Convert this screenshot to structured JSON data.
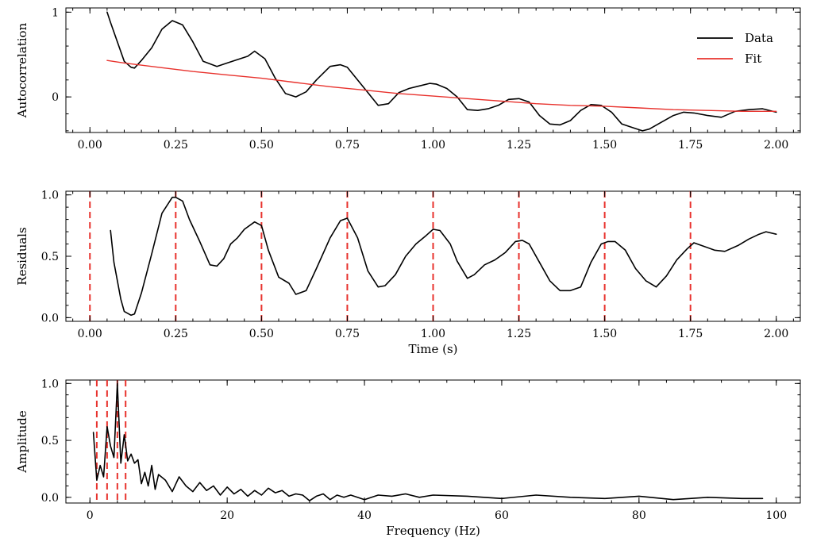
{
  "chart_data": [
    {
      "type": "line",
      "ylabel": "Autocorrelation",
      "xlabel": "",
      "xlim": [
        -0.07,
        2.07
      ],
      "ylim": [
        -0.42,
        1.05
      ],
      "xticks": [
        0,
        0.25,
        0.5,
        0.75,
        1.0,
        1.25,
        1.5,
        1.75,
        2.0
      ],
      "xtick_labels": [
        "0.00",
        "0.25",
        "0.50",
        "0.75",
        "1.00",
        "1.25",
        "1.50",
        "1.75",
        "2.00"
      ],
      "yticks": [
        0,
        1
      ],
      "ytick_labels": [
        "0",
        "1"
      ],
      "legend": {
        "placement": "top-right",
        "entries": [
          {
            "label": "Data",
            "color": "#000000"
          },
          {
            "label": "Fit",
            "color": "#e8322d"
          }
        ]
      },
      "series": [
        {
          "name": "Data",
          "color": "#000000",
          "x": [
            0.05,
            0.06,
            0.08,
            0.1,
            0.12,
            0.13,
            0.15,
            0.18,
            0.21,
            0.24,
            0.27,
            0.3,
            0.33,
            0.37,
            0.4,
            0.43,
            0.46,
            0.48,
            0.51,
            0.54,
            0.57,
            0.6,
            0.63,
            0.66,
            0.7,
            0.73,
            0.75,
            0.78,
            0.81,
            0.84,
            0.87,
            0.9,
            0.93,
            0.96,
            0.99,
            1.01,
            1.04,
            1.07,
            1.1,
            1.13,
            1.16,
            1.19,
            1.22,
            1.25,
            1.28,
            1.31,
            1.34,
            1.37,
            1.4,
            1.43,
            1.46,
            1.49,
            1.52,
            1.55,
            1.58,
            1.61,
            1.63,
            1.66,
            1.7,
            1.73,
            1.76,
            1.8,
            1.84,
            1.88,
            1.92,
            1.96,
            2.0
          ],
          "y": [
            1.0,
            0.88,
            0.65,
            0.42,
            0.35,
            0.34,
            0.43,
            0.58,
            0.8,
            0.9,
            0.85,
            0.65,
            0.42,
            0.36,
            0.4,
            0.44,
            0.48,
            0.54,
            0.45,
            0.22,
            0.04,
            0.0,
            0.06,
            0.2,
            0.36,
            0.38,
            0.35,
            0.2,
            0.05,
            -0.1,
            -0.08,
            0.05,
            0.1,
            0.13,
            0.16,
            0.15,
            0.1,
            0.0,
            -0.15,
            -0.16,
            -0.14,
            -0.1,
            -0.03,
            -0.02,
            -0.06,
            -0.22,
            -0.32,
            -0.33,
            -0.28,
            -0.16,
            -0.09,
            -0.1,
            -0.18,
            -0.32,
            -0.36,
            -0.4,
            -0.38,
            -0.31,
            -0.22,
            -0.18,
            -0.19,
            -0.22,
            -0.24,
            -0.17,
            -0.15,
            -0.14,
            -0.18
          ]
        },
        {
          "name": "Fit",
          "color": "#e8322d",
          "x": [
            0.05,
            0.1,
            0.2,
            0.3,
            0.4,
            0.5,
            0.6,
            0.7,
            0.8,
            0.9,
            1.0,
            1.1,
            1.2,
            1.3,
            1.4,
            1.5,
            1.6,
            1.7,
            1.8,
            1.9,
            2.0
          ],
          "y": [
            0.43,
            0.4,
            0.35,
            0.3,
            0.26,
            0.22,
            0.17,
            0.12,
            0.08,
            0.04,
            0.01,
            -0.02,
            -0.05,
            -0.08,
            -0.1,
            -0.11,
            -0.13,
            -0.15,
            -0.16,
            -0.17,
            -0.17
          ]
        }
      ]
    },
    {
      "type": "line",
      "ylabel": "Residuals",
      "xlabel": "Time (s)",
      "xlim": [
        -0.07,
        2.07
      ],
      "ylim": [
        -0.03,
        1.03
      ],
      "xticks": [
        0,
        0.25,
        0.5,
        0.75,
        1.0,
        1.25,
        1.5,
        1.75,
        2.0
      ],
      "xtick_labels": [
        "0.00",
        "0.25",
        "0.50",
        "0.75",
        "1.00",
        "1.25",
        "1.50",
        "1.75",
        "2.00"
      ],
      "yticks": [
        0,
        0.5,
        1.0
      ],
      "ytick_labels": [
        "0.0",
        "0.5",
        "1.0"
      ],
      "vlines": {
        "color": "#e8322d",
        "x": [
          0.0,
          0.25,
          0.5,
          0.75,
          1.0,
          1.25,
          1.5,
          1.75
        ]
      },
      "series": [
        {
          "name": "Residuals",
          "color": "#000000",
          "x": [
            0.06,
            0.07,
            0.09,
            0.1,
            0.12,
            0.13,
            0.15,
            0.18,
            0.21,
            0.24,
            0.25,
            0.27,
            0.29,
            0.32,
            0.35,
            0.37,
            0.39,
            0.41,
            0.43,
            0.45,
            0.48,
            0.5,
            0.52,
            0.55,
            0.58,
            0.6,
            0.63,
            0.66,
            0.7,
            0.73,
            0.75,
            0.78,
            0.81,
            0.84,
            0.86,
            0.89,
            0.92,
            0.95,
            0.98,
            1.0,
            1.02,
            1.05,
            1.07,
            1.1,
            1.12,
            1.15,
            1.18,
            1.21,
            1.24,
            1.26,
            1.28,
            1.31,
            1.34,
            1.37,
            1.4,
            1.43,
            1.46,
            1.49,
            1.51,
            1.53,
            1.56,
            1.59,
            1.62,
            1.65,
            1.68,
            1.71,
            1.74,
            1.76,
            1.79,
            1.82,
            1.85,
            1.89,
            1.92,
            1.95,
            1.97,
            2.0
          ],
          "y": [
            0.71,
            0.45,
            0.15,
            0.05,
            0.02,
            0.03,
            0.2,
            0.52,
            0.85,
            0.98,
            0.98,
            0.95,
            0.8,
            0.62,
            0.43,
            0.42,
            0.48,
            0.6,
            0.65,
            0.72,
            0.78,
            0.75,
            0.55,
            0.33,
            0.28,
            0.19,
            0.22,
            0.4,
            0.65,
            0.79,
            0.81,
            0.65,
            0.38,
            0.25,
            0.26,
            0.35,
            0.5,
            0.6,
            0.67,
            0.72,
            0.71,
            0.6,
            0.46,
            0.32,
            0.35,
            0.43,
            0.47,
            0.53,
            0.62,
            0.63,
            0.6,
            0.45,
            0.3,
            0.22,
            0.22,
            0.25,
            0.45,
            0.6,
            0.62,
            0.62,
            0.55,
            0.4,
            0.3,
            0.25,
            0.34,
            0.47,
            0.56,
            0.61,
            0.58,
            0.55,
            0.54,
            0.59,
            0.64,
            0.68,
            0.7,
            0.68
          ]
        }
      ]
    },
    {
      "type": "line",
      "ylabel": "Amplitude",
      "xlabel": "Frequency (Hz)",
      "xlim": [
        -3.5,
        103.5
      ],
      "ylim": [
        -0.05,
        1.03
      ],
      "xticks": [
        0,
        20,
        40,
        60,
        80,
        100
      ],
      "xtick_labels": [
        "0",
        "20",
        "40",
        "60",
        "80",
        "100"
      ],
      "yticks": [
        0,
        0.5,
        1.0
      ],
      "ytick_labels": [
        "0.0",
        "0.5",
        "1.0"
      ],
      "vlines": {
        "color": "#e8322d",
        "x": [
          1.0,
          2.5,
          4.0,
          5.2
        ]
      },
      "series": [
        {
          "name": "Amplitude",
          "color": "#000000",
          "x": [
            0.5,
            1.0,
            1.5,
            2.0,
            2.5,
            3.0,
            3.5,
            4.0,
            4.5,
            5.0,
            5.5,
            6.0,
            6.5,
            7.0,
            7.5,
            8.0,
            8.5,
            9.0,
            9.5,
            10,
            11,
            12,
            13,
            14,
            15,
            16,
            17,
            18,
            19,
            20,
            21,
            22,
            23,
            24,
            25,
            26,
            27,
            28,
            29,
            30,
            31,
            32,
            33,
            34,
            35,
            36,
            37,
            38,
            40,
            42,
            44,
            46,
            48,
            50,
            55,
            60,
            65,
            70,
            75,
            80,
            85,
            90,
            95,
            98
          ],
          "y": [
            0.57,
            0.15,
            0.28,
            0.18,
            0.62,
            0.45,
            0.35,
            1.0,
            0.3,
            0.55,
            0.32,
            0.38,
            0.3,
            0.33,
            0.12,
            0.22,
            0.1,
            0.28,
            0.07,
            0.2,
            0.15,
            0.05,
            0.18,
            0.1,
            0.05,
            0.13,
            0.06,
            0.1,
            0.02,
            0.09,
            0.03,
            0.07,
            0.01,
            0.06,
            0.02,
            0.08,
            0.04,
            0.06,
            0.01,
            0.03,
            0.02,
            -0.03,
            0.01,
            0.03,
            -0.02,
            0.02,
            0.0,
            0.02,
            -0.02,
            0.02,
            0.01,
            0.03,
            0.0,
            0.02,
            0.01,
            -0.01,
            0.02,
            0.0,
            -0.01,
            0.01,
            -0.02,
            0.0,
            -0.01,
            -0.01
          ]
        }
      ]
    }
  ]
}
